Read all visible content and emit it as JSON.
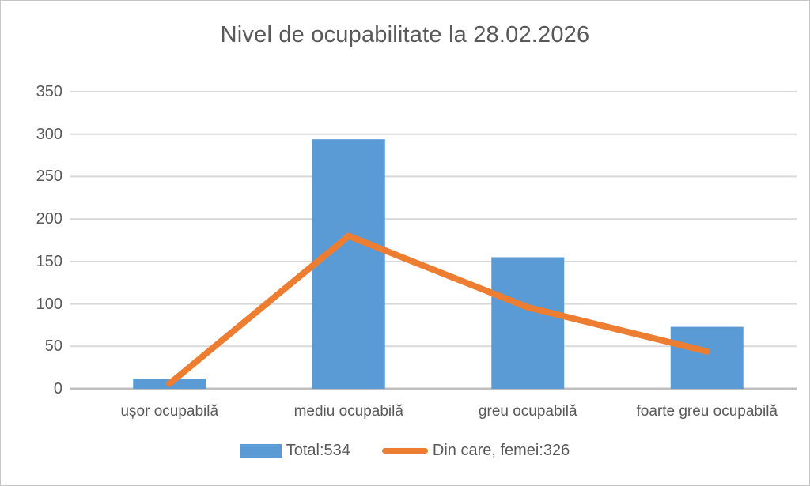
{
  "chart_data": {
    "type": "bar",
    "combo": "bar+line",
    "title": "Nivel de ocupabilitate la 28.02.2026",
    "categories": [
      "ușor ocupabilă",
      "mediu ocupabilă",
      "greu ocupabilă",
      "foarte greu ocupabilă"
    ],
    "series": [
      {
        "name": "Total:534",
        "type": "bar",
        "color": "#5B9BD5",
        "values": [
          12,
          294,
          155,
          73
        ],
        "total": 534
      },
      {
        "name": "Din care, femei:326",
        "type": "line",
        "color": "#ED7D31",
        "values": [
          6,
          180,
          96,
          44
        ],
        "total": 326
      }
    ],
    "xlabel": "",
    "ylabel": "",
    "ylim": [
      0,
      350
    ],
    "yticks": [
      0,
      50,
      100,
      150,
      200,
      250,
      300,
      350
    ],
    "grid": true,
    "legend_position": "bottom"
  },
  "colors": {
    "gridline": "#D9D9D9",
    "axis_line": "#BFBFBF",
    "text": "#595959",
    "background": "#FFFFFF",
    "frame_border": "#C6C6C6"
  }
}
